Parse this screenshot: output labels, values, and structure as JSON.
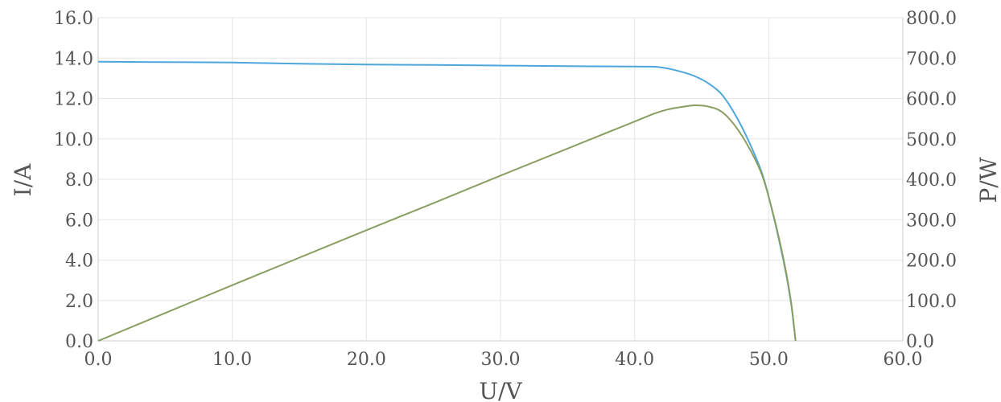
{
  "chart_data": {
    "type": "line",
    "xlabel": "U/V",
    "ylabel_left": "I/A",
    "ylabel_right": "P/W",
    "xlim": [
      0,
      60
    ],
    "ylim_left": [
      0,
      16
    ],
    "ylim_right": [
      0,
      800
    ],
    "x_ticks": [
      "0.0",
      "10.0",
      "20.0",
      "30.0",
      "40.0",
      "50.0",
      "60.0"
    ],
    "y_left_ticks": [
      "0.0",
      "2.0",
      "4.0",
      "6.0",
      "8.0",
      "10.0",
      "12.0",
      "14.0",
      "16.0"
    ],
    "y_right_ticks": [
      "0.0",
      "100.0",
      "200.0",
      "300.0",
      "400.0",
      "500.0",
      "600.0",
      "700.0",
      "800.0"
    ],
    "grid": true,
    "series": [
      {
        "axis": "left",
        "color": "#4da6dd",
        "points": [
          [
            0,
            13.82
          ],
          [
            5,
            13.8
          ],
          [
            10,
            13.78
          ],
          [
            15,
            13.72
          ],
          [
            20,
            13.68
          ],
          [
            25,
            13.66
          ],
          [
            30,
            13.63
          ],
          [
            35,
            13.6
          ],
          [
            40,
            13.58
          ],
          [
            41.5,
            13.57
          ],
          [
            42.5,
            13.48
          ],
          [
            43.5,
            13.32
          ],
          [
            44.5,
            13.1
          ],
          [
            45.5,
            12.75
          ],
          [
            46.5,
            12.2
          ],
          [
            47.5,
            11.2
          ],
          [
            48.5,
            9.9
          ],
          [
            49.5,
            8.3
          ],
          [
            50.2,
            6.6
          ],
          [
            50.8,
            4.9
          ],
          [
            51.3,
            3.3
          ],
          [
            51.7,
            1.7
          ],
          [
            52.0,
            0
          ]
        ]
      },
      {
        "axis": "right",
        "color": "#8b9e62",
        "points": [
          [
            0,
            0
          ],
          [
            5,
            69
          ],
          [
            10,
            138
          ],
          [
            15,
            206
          ],
          [
            20,
            274
          ],
          [
            25,
            341
          ],
          [
            30,
            409
          ],
          [
            35,
            476
          ],
          [
            40,
            543
          ],
          [
            41.5,
            563
          ],
          [
            42.5,
            573
          ],
          [
            43.5,
            579
          ],
          [
            44.5,
            583
          ],
          [
            45.5,
            580
          ],
          [
            46.5,
            567
          ],
          [
            47.5,
            532
          ],
          [
            48.5,
            480
          ],
          [
            49.5,
            411
          ],
          [
            50.2,
            331
          ],
          [
            50.8,
            249
          ],
          [
            51.3,
            169
          ],
          [
            51.7,
            88
          ],
          [
            52.0,
            0
          ]
        ]
      }
    ]
  }
}
